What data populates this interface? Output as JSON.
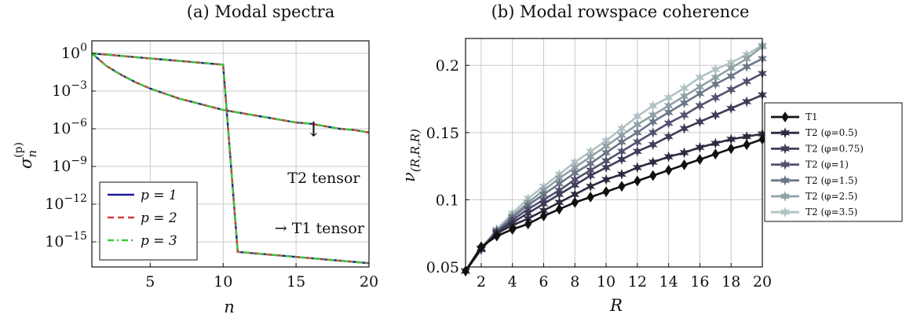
{
  "chart_data": [
    {
      "type": "line",
      "title": "(a) Modal spectra",
      "xlabel": "n",
      "ylabel_main": "σ",
      "ylabel_sub": "n",
      "ylabel_sup": "(p)",
      "yscale": "log",
      "xlim": [
        1,
        20
      ],
      "ylim_exp": [
        -17,
        1
      ],
      "xticks": [
        "5",
        "10",
        "15",
        "20"
      ],
      "yticks": [
        {
          "exp": 0,
          "label": "0"
        },
        {
          "exp": -3,
          "label": "−3"
        },
        {
          "exp": -6,
          "label": "−6"
        },
        {
          "exp": -9,
          "label": "−9"
        },
        {
          "exp": -12,
          "label": "−12"
        },
        {
          "exp": -15,
          "label": "−15"
        }
      ],
      "grid": true,
      "legend_position": "bottom-left",
      "series": [
        {
          "name": "p = 1",
          "style": "solid",
          "color": "#1a1a9c"
        },
        {
          "name": "p = 2",
          "style": "dashed",
          "color": "#d43c3c"
        },
        {
          "name": "p = 3",
          "style": "dashdot",
          "color": "#3cc83c"
        }
      ],
      "curves": {
        "T1 tensor": {
          "x": [
            1,
            2,
            3,
            4,
            5,
            6,
            7,
            8,
            9,
            10,
            11,
            12,
            13,
            14,
            15,
            16,
            17,
            18,
            19,
            20
          ],
          "log10_y": [
            0,
            -0.1,
            -0.2,
            -0.3,
            -0.4,
            -0.5,
            -0.6,
            -0.7,
            -0.8,
            -0.9,
            -15.8,
            -15.9,
            -16.0,
            -16.1,
            -16.2,
            -16.3,
            -16.4,
            -16.5,
            -16.6,
            -16.7
          ]
        },
        "T2 tensor": {
          "x": [
            1,
            2,
            3,
            4,
            5,
            6,
            7,
            8,
            9,
            10,
            11,
            12,
            13,
            14,
            15,
            16,
            17,
            18,
            19,
            20
          ],
          "log10_y": [
            0,
            -1.0,
            -1.7,
            -2.3,
            -2.8,
            -3.2,
            -3.6,
            -3.9,
            -4.2,
            -4.5,
            -4.7,
            -4.9,
            -5.1,
            -5.3,
            -5.5,
            -5.6,
            -5.8,
            -6.0,
            -6.1,
            -6.3
          ]
        }
      },
      "annotations": [
        {
          "text": "↓",
          "x": 16.2,
          "log10_y": -6.6
        },
        {
          "text": "T2 tensor",
          "x": 16.9,
          "log10_y": -10.3
        },
        {
          "text": "→ T1 tensor",
          "x": 16.6,
          "log10_y": -14.3
        }
      ]
    },
    {
      "type": "line",
      "title": "(b) Modal rowspace coherence",
      "xlabel": "R",
      "ylabel_main": "ν",
      "ylabel_sub": "(R,R,R)",
      "xlim": [
        1,
        20
      ],
      "ylim": [
        0.05,
        0.22
      ],
      "xticks": [
        2,
        4,
        6,
        8,
        10,
        12,
        14,
        16,
        18,
        20
      ],
      "yticks": [
        0.05,
        0.1,
        0.15,
        0.2
      ],
      "ytick_labels": [
        "0.05",
        "0.1",
        "0.15",
        "0.2"
      ],
      "grid": true,
      "legend_position": "outside-right",
      "x": [
        1,
        2,
        3,
        4,
        5,
        6,
        7,
        8,
        9,
        10,
        11,
        12,
        13,
        14,
        15,
        16,
        17,
        18,
        19,
        20
      ],
      "series": [
        {
          "name": "T1",
          "marker": "diamond",
          "color": "#111111",
          "values": [
            0.047,
            0.065,
            0.073,
            0.078,
            0.082,
            0.088,
            0.093,
            0.098,
            0.102,
            0.106,
            0.11,
            0.114,
            0.118,
            0.122,
            0.126,
            0.13,
            0.134,
            0.138,
            0.141,
            0.145
          ]
        },
        {
          "name": "T2 (φ=0.5)",
          "marker": "star",
          "color": "#2d2b3f",
          "values": [
            0.047,
            0.064,
            0.075,
            0.081,
            0.086,
            0.092,
            0.098,
            0.104,
            0.11,
            0.115,
            0.119,
            0.124,
            0.128,
            0.132,
            0.135,
            0.139,
            0.142,
            0.145,
            0.147,
            0.149
          ]
        },
        {
          "name": "T2 (φ=0.75)",
          "marker": "star",
          "color": "#3e3c58",
          "values": [
            0.047,
            0.063,
            0.076,
            0.083,
            0.09,
            0.097,
            0.104,
            0.111,
            0.118,
            0.124,
            0.13,
            0.136,
            0.141,
            0.147,
            0.153,
            0.158,
            0.163,
            0.168,
            0.173,
            0.178
          ]
        },
        {
          "name": "T2 (φ=1)",
          "marker": "star",
          "color": "#525270",
          "values": [
            0.047,
            0.063,
            0.076,
            0.085,
            0.093,
            0.1,
            0.107,
            0.115,
            0.122,
            0.129,
            0.136,
            0.143,
            0.15,
            0.157,
            0.163,
            0.17,
            0.176,
            0.182,
            0.188,
            0.194
          ]
        },
        {
          "name": "T2 (φ=1.5)",
          "marker": "star",
          "color": "#6b7888",
          "values": [
            0.047,
            0.063,
            0.077,
            0.087,
            0.096,
            0.104,
            0.112,
            0.12,
            0.127,
            0.135,
            0.143,
            0.15,
            0.158,
            0.165,
            0.172,
            0.179,
            0.186,
            0.192,
            0.199,
            0.205
          ]
        },
        {
          "name": "T2 (φ=2.5)",
          "marker": "star",
          "color": "#8ea2a6",
          "values": [
            0.047,
            0.064,
            0.077,
            0.088,
            0.098,
            0.107,
            0.116,
            0.124,
            0.132,
            0.14,
            0.148,
            0.156,
            0.163,
            0.17,
            0.177,
            0.184,
            0.191,
            0.198,
            0.205,
            0.214
          ]
        },
        {
          "name": "T2 (φ=3.5)",
          "marker": "star",
          "color": "#b2c2c4",
          "values": [
            0.047,
            0.064,
            0.078,
            0.09,
            0.101,
            0.11,
            0.119,
            0.128,
            0.136,
            0.144,
            0.153,
            0.162,
            0.17,
            0.176,
            0.183,
            0.191,
            0.197,
            0.202,
            0.208,
            0.215
          ]
        }
      ]
    }
  ]
}
